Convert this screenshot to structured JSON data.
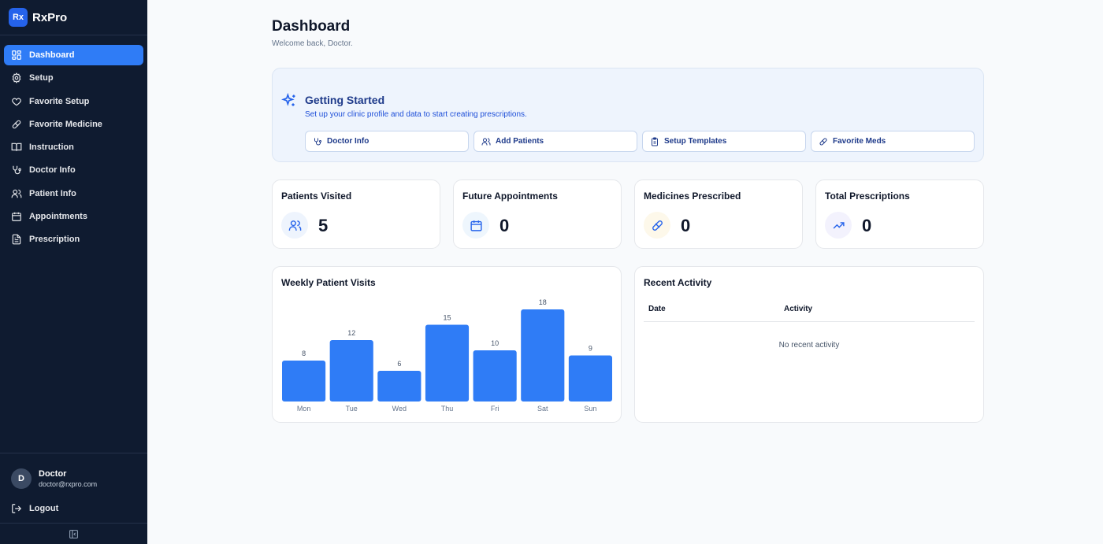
{
  "brand": {
    "logo": "Rx",
    "name": "RxPro"
  },
  "sidebar": {
    "items": [
      {
        "label": "Dashboard",
        "icon": "dashboard-icon",
        "active": true
      },
      {
        "label": "Setup",
        "icon": "gear-icon"
      },
      {
        "label": "Favorite Setup",
        "icon": "heart-icon"
      },
      {
        "label": "Favorite Medicine",
        "icon": "pill-icon"
      },
      {
        "label": "Instruction",
        "icon": "book-icon"
      },
      {
        "label": "Doctor Info",
        "icon": "stethoscope-icon"
      },
      {
        "label": "Patient Info",
        "icon": "users-icon"
      },
      {
        "label": "Appointments",
        "icon": "calendar-icon"
      },
      {
        "label": "Prescription",
        "icon": "document-icon"
      }
    ]
  },
  "user": {
    "initial": "D",
    "name": "Doctor",
    "email": "doctor@rxpro.com"
  },
  "logout_label": "Logout",
  "header": {
    "title": "Dashboard",
    "subtitle": "Welcome back, Doctor."
  },
  "getting_started": {
    "title": "Getting Started",
    "description": "Set up your clinic profile and data to start creating prescriptions.",
    "buttons": [
      {
        "label": "Doctor Info",
        "icon": "stethoscope-icon"
      },
      {
        "label": "Add Patients",
        "icon": "users-icon"
      },
      {
        "label": "Setup Templates",
        "icon": "clipboard-icon"
      },
      {
        "label": "Favorite Meds",
        "icon": "pill-icon"
      }
    ]
  },
  "stats": [
    {
      "label": "Patients Visited",
      "value": "5",
      "icon": "users-icon"
    },
    {
      "label": "Future Appointments",
      "value": "0",
      "icon": "calendar-icon"
    },
    {
      "label": "Medicines Prescribed",
      "value": "0",
      "icon": "pill-icon"
    },
    {
      "label": "Total Prescriptions",
      "value": "0",
      "icon": "trending-up-icon"
    }
  ],
  "colors": {
    "accent": "#2f7cf6",
    "sidebar_bg": "#0f1b30",
    "bar": "#2f7cf6"
  },
  "weekly_chart_title": "Weekly Patient Visits",
  "chart_data": {
    "type": "bar",
    "title": "Weekly Patient Visits",
    "categories": [
      "Mon",
      "Tue",
      "Wed",
      "Thu",
      "Fri",
      "Sat",
      "Sun"
    ],
    "values": [
      8,
      12,
      6,
      15,
      10,
      18,
      9
    ],
    "ylim": [
      0,
      18
    ],
    "grid": false,
    "data_labels": true
  },
  "recent_activity": {
    "title": "Recent Activity",
    "columns": [
      "Date",
      "Activity"
    ],
    "empty_text": "No recent activity"
  }
}
